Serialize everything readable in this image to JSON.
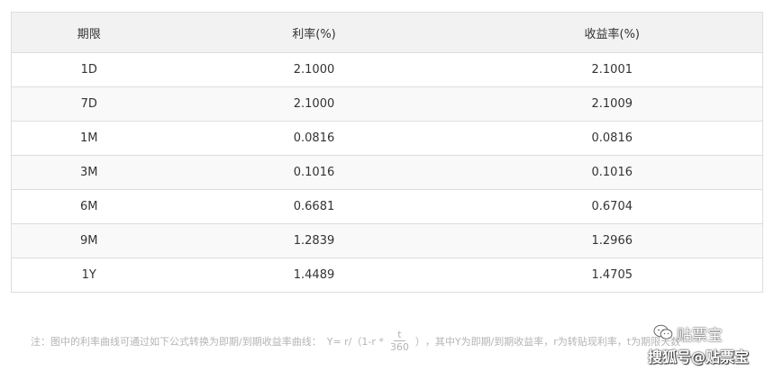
{
  "table": {
    "headers": [
      "期限",
      "利率(%)",
      "收益率(%)"
    ],
    "rows": [
      [
        "1D",
        "2.1000",
        "2.1001"
      ],
      [
        "7D",
        "2.1000",
        "2.1009"
      ],
      [
        "1M",
        "0.0816",
        "0.0816"
      ],
      [
        "3M",
        "0.1016",
        "0.1016"
      ],
      [
        "6M",
        "0.6681",
        "0.6704"
      ],
      [
        "9M",
        "1.2839",
        "1.2966"
      ],
      [
        "1Y",
        "1.4489",
        "1.4705"
      ]
    ]
  },
  "note": {
    "prefix": "注：图中的利率曲线可通过如下公式转换为即期/到期收益率曲线：",
    "formula_lhs": "Y= r/（1-r *",
    "fraction_numerator": "t",
    "fraction_denominator": "360",
    "formula_close": "）",
    "suffix": "，其中Y为即期/到期收益率，r为转贴现利率，t为期限天数"
  },
  "watermark": {
    "icon": "wechat-icon",
    "brand": "贴票宝",
    "source": "搜狐号@贴票宝"
  },
  "colors": {
    "header_bg": "#f2f2f2",
    "stripe_bg": "#f9f9f9",
    "border": "#dddddd",
    "text": "#333333",
    "note_text": "#b4b4b4"
  }
}
